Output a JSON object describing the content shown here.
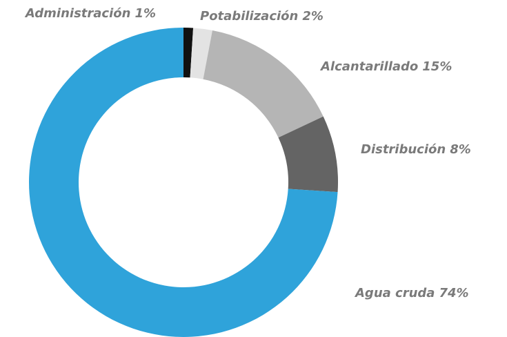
{
  "chart_data": {
    "type": "donut",
    "categories": [
      "Administración",
      "Potabilización",
      "Alcantarillado",
      "Distribución",
      "Agua cruda"
    ],
    "values": [
      1,
      2,
      15,
      8,
      74
    ],
    "value_labels": [
      "1%",
      "2%",
      "15%",
      "8%",
      "74%"
    ],
    "colors": [
      "#111111",
      "#e3e3e3",
      "#b5b5b5",
      "#646464",
      "#2fa3da"
    ]
  }
}
